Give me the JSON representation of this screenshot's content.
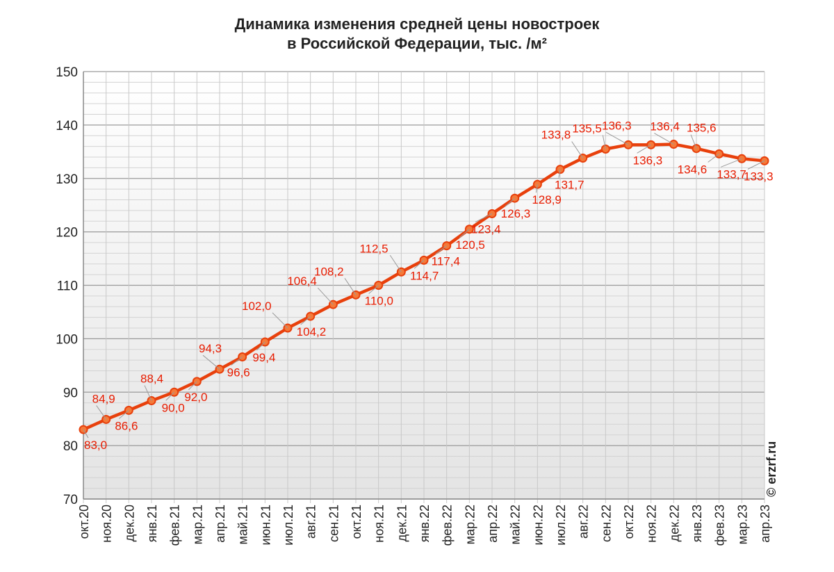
{
  "title_line1": "Динамика изменения средней цены новостроек",
  "title_line2": "в Российской Федерации, тыс.   /м²",
  "watermark": "© erzrf.ru",
  "colors": {
    "line": "#e8400c",
    "point_fill": "#f47a3a",
    "label": "#e81c00",
    "grid": "#bdbdbd"
  },
  "chart_data": {
    "type": "line",
    "categories": [
      "окт.20",
      "ноя.20",
      "дек.20",
      "янв.21",
      "фев.21",
      "мар.21",
      "апр.21",
      "май.21",
      "июн.21",
      "июл.21",
      "авг.21",
      "сен.21",
      "окт.21",
      "ноя.21",
      "дек.21",
      "янв.22",
      "фев.22",
      "мар.22",
      "апр.22",
      "май.22",
      "июн.22",
      "июл.22",
      "авг.22",
      "сен.22",
      "окт.22",
      "ноя.22",
      "дек.22",
      "янв.23",
      "фев.23",
      "мар.23",
      "апр.23"
    ],
    "values": [
      83.0,
      84.9,
      86.6,
      88.4,
      90.0,
      92.0,
      94.3,
      96.6,
      99.4,
      102.0,
      104.2,
      106.4,
      108.2,
      110.0,
      112.5,
      114.7,
      117.4,
      120.5,
      123.4,
      126.3,
      128.9,
      131.7,
      133.8,
      135.5,
      136.3,
      136.3,
      136.4,
      135.6,
      134.6,
      133.7,
      133.3
    ],
    "labels": [
      "83,0",
      "84,9",
      "86,6",
      "88,4",
      "90,0",
      "92,0",
      "94,3",
      "96,6",
      "99,4",
      "102,0",
      "104,2",
      "106,4",
      "108,2",
      "110,0",
      "112,5",
      "114,7",
      "117,4",
      "120,5",
      "123,4",
      "126,3",
      "128,9",
      "131,7",
      "133,8",
      "135,5",
      "136,3",
      "136,3",
      "136,4",
      "135,6",
      "134,6",
      "133,7",
      "133,3"
    ],
    "ylim": [
      70,
      150
    ],
    "y_ticks": [
      "70",
      "80",
      "90",
      "100",
      "110",
      "120",
      "130",
      "140",
      "150"
    ],
    "grid": true
  }
}
